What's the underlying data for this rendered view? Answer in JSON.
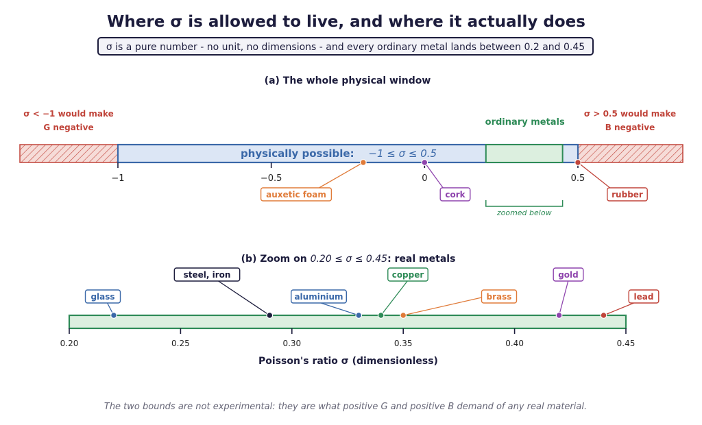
{
  "title": "Where σ is allowed to live, and where it actually does",
  "subtitle": "σ is a pure number - no unit, no dimensions - and every ordinary metal lands between 0.2 and 0.45",
  "footnote": "The two bounds are not experimental: they are what positive G and positive B demand of any real material.",
  "colors": {
    "dark": "#1c1c3c",
    "blue": "#3a68a8",
    "blue_fill": "#dce6f5",
    "green": "#2e8b57",
    "green_fill": "#dcefdf",
    "red": "#c0443a",
    "red_fill": "#f6dcd8",
    "orange": "#e07b39",
    "purple": "#8e44ad"
  },
  "chart_data": [
    {
      "type": "number-line",
      "title": "(a) The whole physical window",
      "xlim": [
        -1.64,
        0.57
      ],
      "ticks": [
        -1,
        -0.5,
        0,
        0.5
      ],
      "tick_labels": [
        "−1",
        "−0.5",
        "0",
        "0.5"
      ],
      "regions": [
        {
          "name": "forbidden-low",
          "from": -1.64,
          "to": -1,
          "label_line1": "σ < −1 would make",
          "label_line2": "G negative"
        },
        {
          "name": "allowed",
          "from": -1,
          "to": 0.5,
          "label": "physically possible:",
          "label_math": "−1 ≤ σ ≤ 0.5"
        },
        {
          "name": "ordinary-metals",
          "from": 0.2,
          "to": 0.45,
          "label": "ordinary metals"
        },
        {
          "name": "forbidden-high",
          "from": 0.5,
          "to": 0.57,
          "label_line1": "σ > 0.5 would make",
          "label_line2": "B negative"
        }
      ],
      "points": [
        {
          "label": "auxetic foam",
          "value": -0.2,
          "color": "orange"
        },
        {
          "label": "cork",
          "value": 0.0,
          "color": "purple"
        },
        {
          "label": "rubber",
          "value": 0.5,
          "color": "red"
        }
      ],
      "zoom_label": "zoomed below"
    },
    {
      "type": "number-line",
      "title_prefix": "(b) Zoom on ",
      "title_math": "0.20 ≤ σ ≤ 0.45",
      "title_suffix": ": real metals",
      "xlim": [
        0.2,
        0.45
      ],
      "ticks": [
        0.2,
        0.25,
        0.3,
        0.35,
        0.4,
        0.45
      ],
      "tick_labels": [
        "0.20",
        "0.25",
        "0.30",
        "0.35",
        "0.40",
        "0.45"
      ],
      "xlabel": "Poisson's ratio  σ  (dimensionless)",
      "points": [
        {
          "label": "glass",
          "value": 0.22,
          "color": "blue"
        },
        {
          "label": "steel, iron",
          "value": 0.29,
          "color": "dark"
        },
        {
          "label": "aluminium",
          "value": 0.33,
          "color": "blue"
        },
        {
          "label": "copper",
          "value": 0.34,
          "color": "green"
        },
        {
          "label": "brass",
          "value": 0.35,
          "color": "orange"
        },
        {
          "label": "gold",
          "value": 0.42,
          "color": "purple"
        },
        {
          "label": "lead",
          "value": 0.44,
          "color": "red"
        }
      ]
    }
  ]
}
